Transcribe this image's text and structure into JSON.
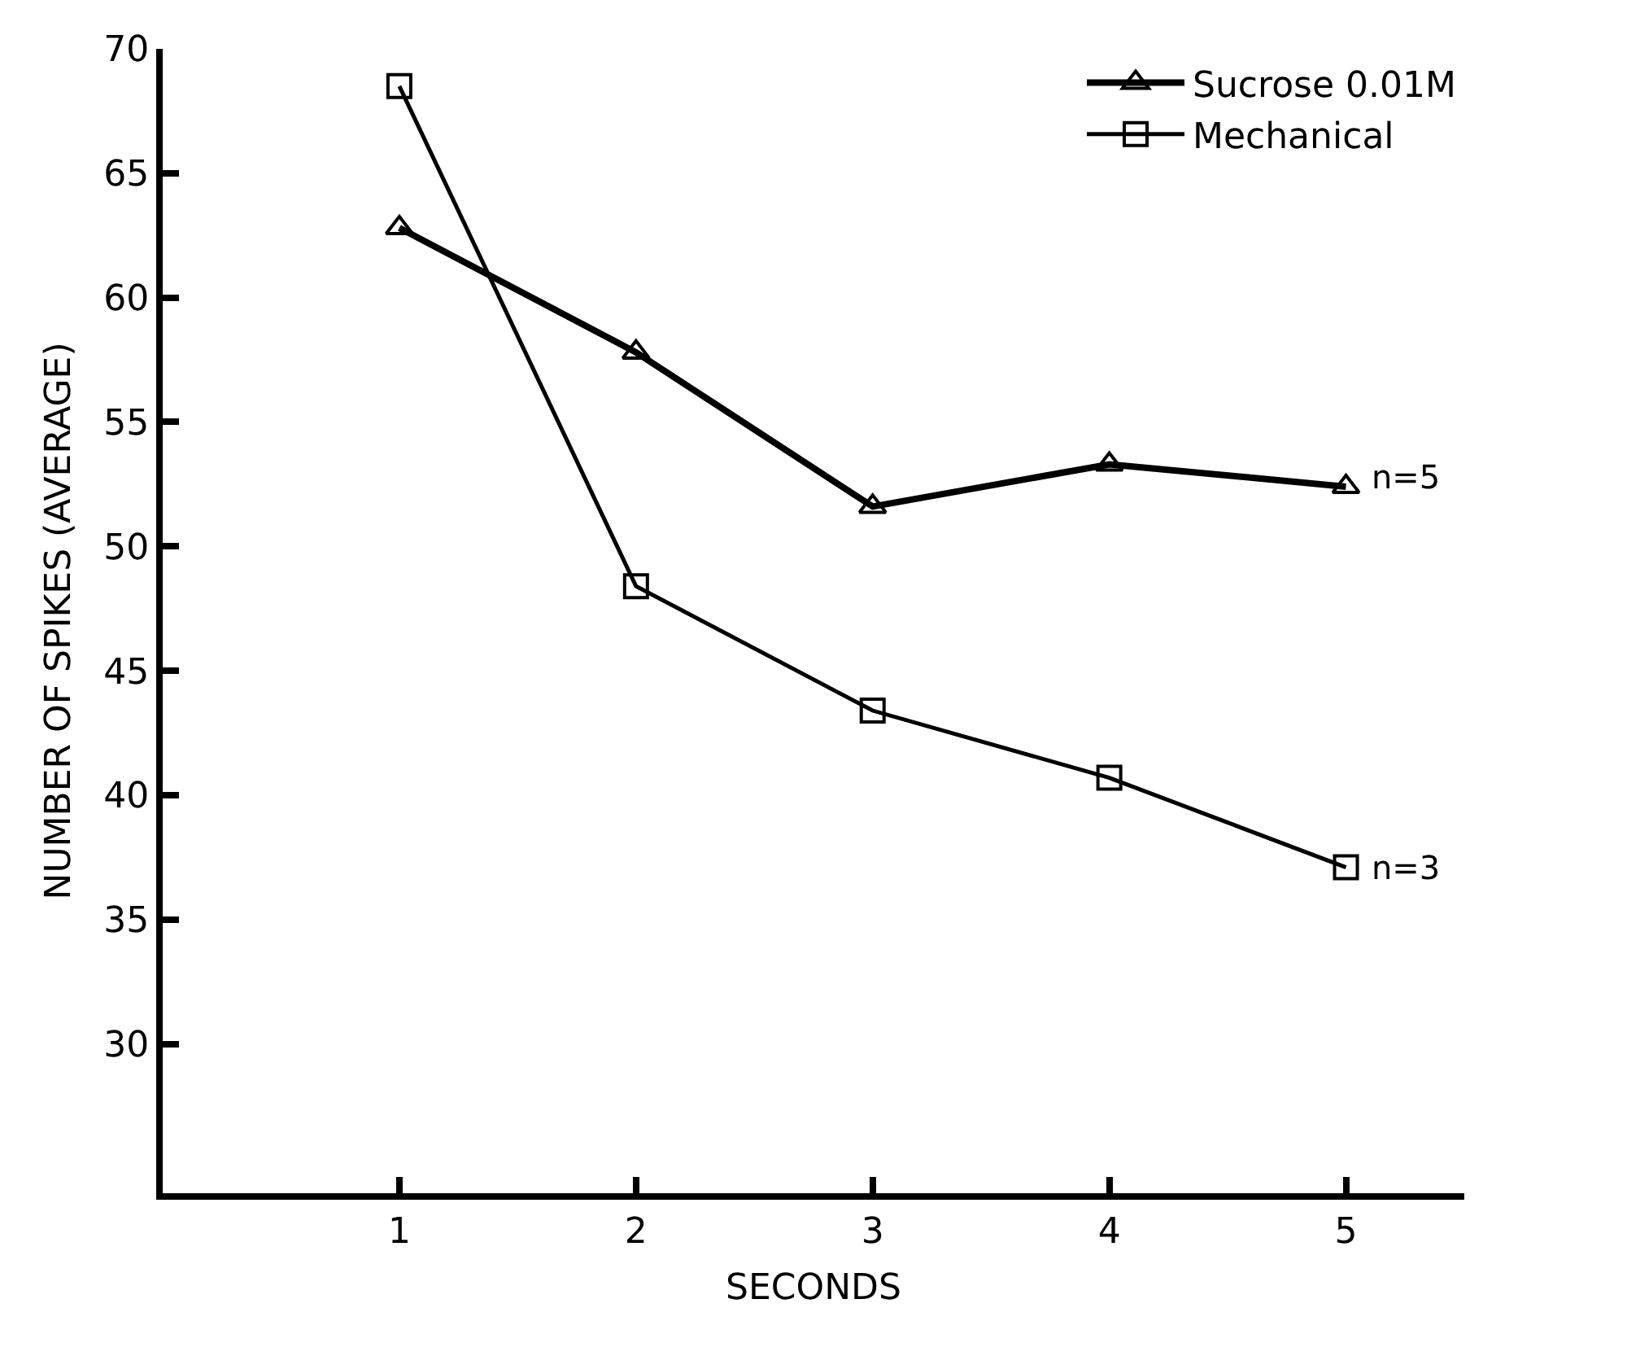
{
  "chart_data": {
    "type": "line",
    "xlabel": "SECONDS",
    "ylabel": "NUMBER OF SPIKES (AVERAGE)",
    "x": [
      1,
      2,
      3,
      4,
      5
    ],
    "series": [
      {
        "name": "Sucrose 0.01M",
        "color": "#000000",
        "marker": "triangle",
        "values": [
          62.8,
          57.8,
          51.6,
          53.3,
          52.4
        ]
      },
      {
        "name": "Mechanical",
        "color": "#000000",
        "marker": "square",
        "values": [
          68.5,
          48.4,
          43.4,
          40.7,
          37.1
        ]
      }
    ],
    "annotations": [
      {
        "text": "n=5",
        "x": 5,
        "y": 52.4
      },
      {
        "text": "n=3",
        "x": 5,
        "y": 37.1
      }
    ],
    "xlim": [
      0,
      5.5
    ],
    "xticks": [
      1,
      2,
      3,
      4,
      5
    ],
    "ylim": [
      24,
      70
    ],
    "yticks": [
      30,
      35,
      40,
      45,
      50,
      55,
      60,
      65,
      70
    ],
    "legend": "top right",
    "line_style": "solid"
  }
}
